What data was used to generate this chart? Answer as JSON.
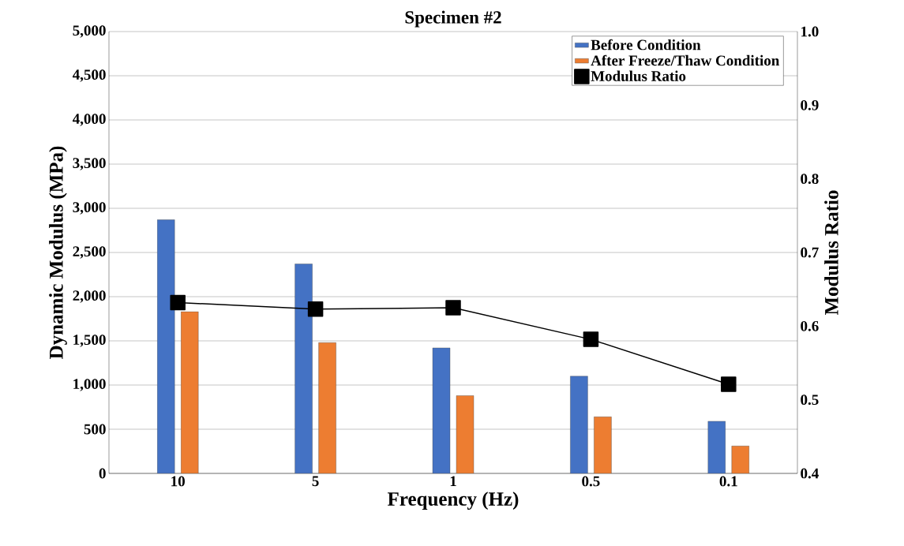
{
  "chart_data": {
    "type": "bar",
    "title": "Specimen #2",
    "xlabel": "Frequency (Hz)",
    "ylabel": "Dynamic Modulus (MPa)",
    "y2label": "Modulus Ratio",
    "categories": [
      "10",
      "5",
      "1",
      "0.5",
      "0.1"
    ],
    "series": [
      {
        "name": "Before Condition",
        "color": "#4472c4",
        "values": [
          2870,
          2370,
          1420,
          1100,
          590
        ]
      },
      {
        "name": "After Freeze/Thaw Condition",
        "color": "#ed7d31",
        "values": [
          1830,
          1480,
          880,
          640,
          310
        ]
      },
      {
        "name": "Modulus Ratio",
        "type": "line",
        "axis": "y2",
        "color": "#000000",
        "values": [
          0.632,
          0.623,
          0.625,
          0.582,
          0.521
        ]
      }
    ],
    "ylim": [
      0,
      5000
    ],
    "yticks": [
      {
        "value": 0,
        "label": "0"
      },
      {
        "value": 500,
        "label": "500"
      },
      {
        "value": 1000,
        "label": "1,000"
      },
      {
        "value": 1500,
        "label": "1,500"
      },
      {
        "value": 2000,
        "label": "2,000"
      },
      {
        "value": 2500,
        "label": "2,500"
      },
      {
        "value": 3000,
        "label": "3,000"
      },
      {
        "value": 3500,
        "label": "3,500"
      },
      {
        "value": 4000,
        "label": "4,000"
      },
      {
        "value": 4500,
        "label": "4,500"
      },
      {
        "value": 5000,
        "label": "5,000"
      }
    ],
    "y2lim": [
      0.4,
      1.0
    ],
    "y2ticks": [
      {
        "value": 0.4,
        "label": "0.4"
      },
      {
        "value": 0.5,
        "label": "0.5"
      },
      {
        "value": 0.6,
        "label": "0.6"
      },
      {
        "value": 0.7,
        "label": "0.7"
      },
      {
        "value": 0.8,
        "label": "0.8"
      },
      {
        "value": 0.9,
        "label": "0.9"
      },
      {
        "value": 1.0,
        "label": "1.0"
      }
    ],
    "grid": "y",
    "legend": "top right",
    "marker": "square",
    "line_style": "solid"
  }
}
